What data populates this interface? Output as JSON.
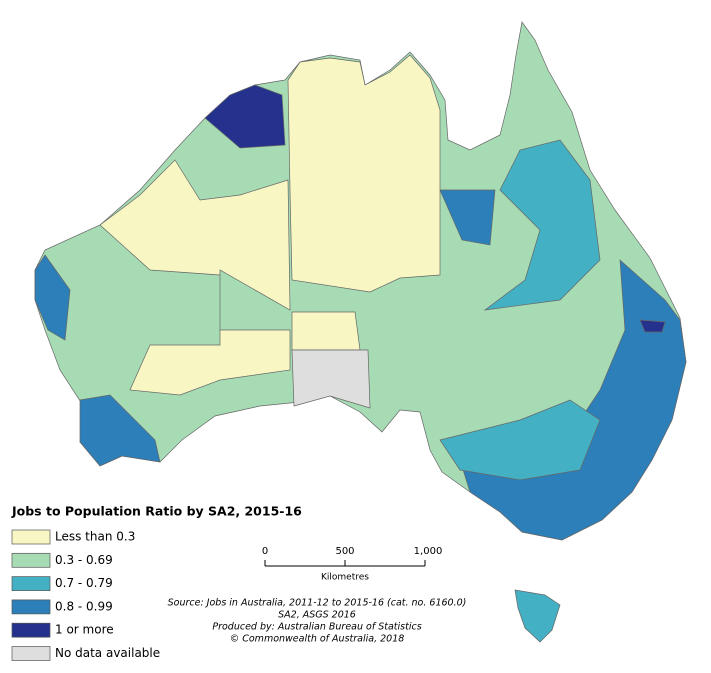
{
  "legend": {
    "title": "Jobs to Population Ratio by SA2, 2015-16",
    "items": [
      {
        "label": "Less than 0.3",
        "color": "#f8f7c4"
      },
      {
        "label": "0.3 - 0.69",
        "color": "#a6dbb4"
      },
      {
        "label": "0.7 - 0.79",
        "color": "#43b0c4"
      },
      {
        "label": "0.8 - 0.99",
        "color": "#2c7fb8"
      },
      {
        "label": "1 or more",
        "color": "#24328e"
      },
      {
        "label": "No data available",
        "color": "#dedede"
      }
    ]
  },
  "scale_bar": {
    "ticks": [
      "0",
      "500",
      "1,000"
    ],
    "unit": "Kilometres"
  },
  "source": [
    "Source: Jobs in Australia, 2011-12 to 2015-16 (cat. no. 6160.0)",
    "SA2, ASGS 2016",
    "Produced by: Australian Bureau of Statistics",
    "© Commonwealth of Australia, 2018"
  ]
}
